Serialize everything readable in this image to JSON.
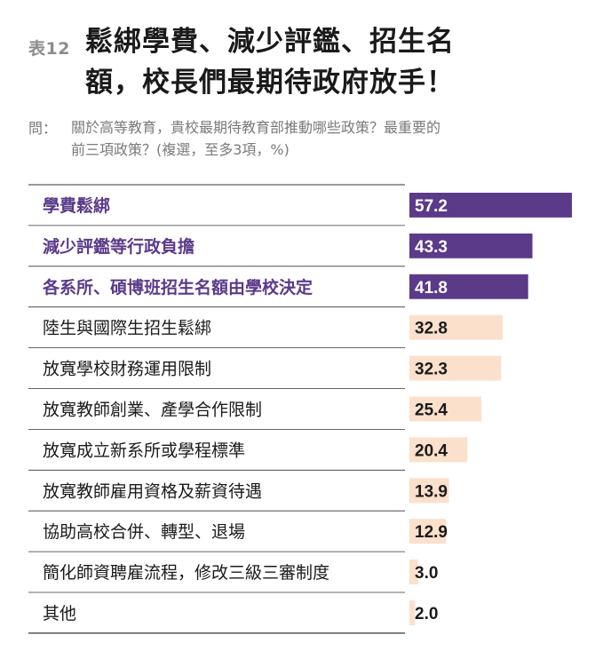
{
  "header": {
    "table_no": "表12",
    "title_line1": "鬆綁學費、減少評鑑、招生名",
    "title_line2": "額，校長們最期待政府放手！"
  },
  "question": {
    "label": "問：",
    "line1": "關於高等教育，貴校最期待教育部推動哪些政策？最重要的",
    "line2": "前三項政策？(複選，至多3項，%)"
  },
  "colors": {
    "highlight_bar": "#5b3a8a",
    "highlight_text": "#5b3a8a",
    "normal_bar": "#fbe0cc",
    "normal_text": "#1a1a1a",
    "highlight_value": "#ffffff",
    "normal_value": "#1a1a1a",
    "rule": "#333333"
  },
  "chart_data": {
    "type": "bar",
    "orientation": "horizontal",
    "categories": [
      "學費鬆綁",
      "減少評鑑等行政負擔",
      "各系所、碩博班招生名額由學校決定",
      "陸生與國際生招生鬆綁",
      "放寬學校財務運用限制",
      "放寬教師創業、產學合作限制",
      "放寬成立新系所或學程標準",
      "放寬教師雇用資格及薪資待遇",
      "協助高校合併、轉型、退場",
      "簡化師資聘雇流程，修改三級三審制度",
      "其他"
    ],
    "values": [
      57.2,
      43.3,
      41.8,
      32.8,
      32.3,
      25.4,
      20.4,
      13.9,
      12.9,
      3.0,
      2.0
    ],
    "value_labels": [
      "57.2",
      "43.3",
      "41.8",
      "32.8",
      "32.3",
      "25.4",
      "20.4",
      "13.9",
      "12.9",
      "3.0",
      "2.0"
    ],
    "highlighted": [
      true,
      true,
      true,
      false,
      false,
      false,
      false,
      false,
      false,
      false,
      false
    ],
    "xlim": [
      0,
      57.2
    ]
  }
}
